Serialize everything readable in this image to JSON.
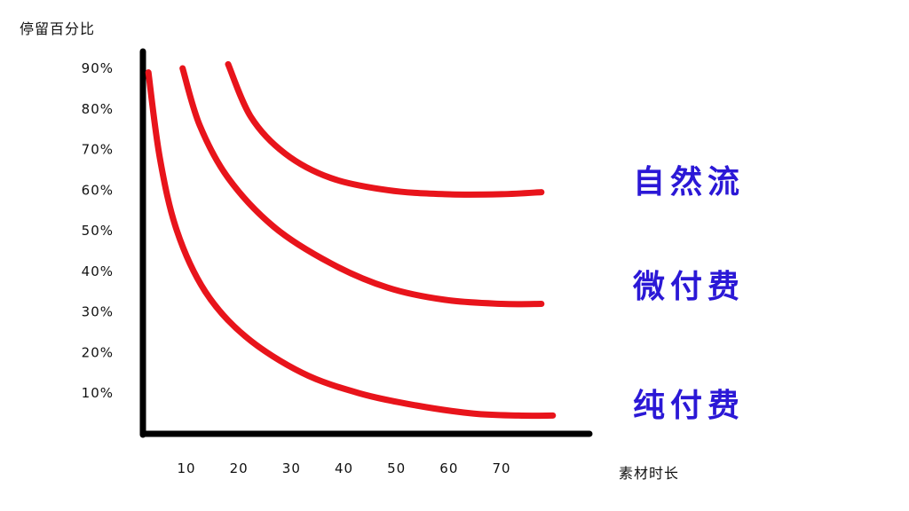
{
  "chart_data": {
    "type": "line",
    "title": "",
    "ylabel": "停留百分比",
    "xlabel": "素材时长",
    "x_ticks": [
      "10",
      "20",
      "30",
      "40",
      "50",
      "60",
      "70"
    ],
    "y_ticks": [
      "90%",
      "80%",
      "70%",
      "60%",
      "50%",
      "40%",
      "30%",
      "20%",
      "10%"
    ],
    "xlim": [
      5,
      85
    ],
    "ylim": [
      0,
      95
    ],
    "series": [
      {
        "name": "自然流",
        "color": "#e8141b",
        "x": [
          22,
          26,
          32,
          40,
          50,
          60,
          70,
          77
        ],
        "y": [
          91,
          78,
          69,
          63,
          60,
          59,
          59,
          59.5
        ]
      },
      {
        "name": "微付费",
        "color": "#e8141b",
        "x": [
          14,
          17,
          22,
          30,
          40,
          50,
          60,
          70,
          77
        ],
        "y": [
          90,
          76,
          63,
          51,
          42,
          36,
          33,
          32,
          32
        ]
      },
      {
        "name": "纯付费",
        "color": "#e8141b",
        "x": [
          8,
          10,
          13,
          18,
          25,
          35,
          45,
          55,
          65,
          73,
          79
        ],
        "y": [
          89,
          68,
          50,
          35,
          24,
          15,
          10,
          7,
          5,
          4.5,
          4.5
        ]
      }
    ],
    "label_color": "#2b18d6",
    "grid": false,
    "legend": "right of curves"
  }
}
